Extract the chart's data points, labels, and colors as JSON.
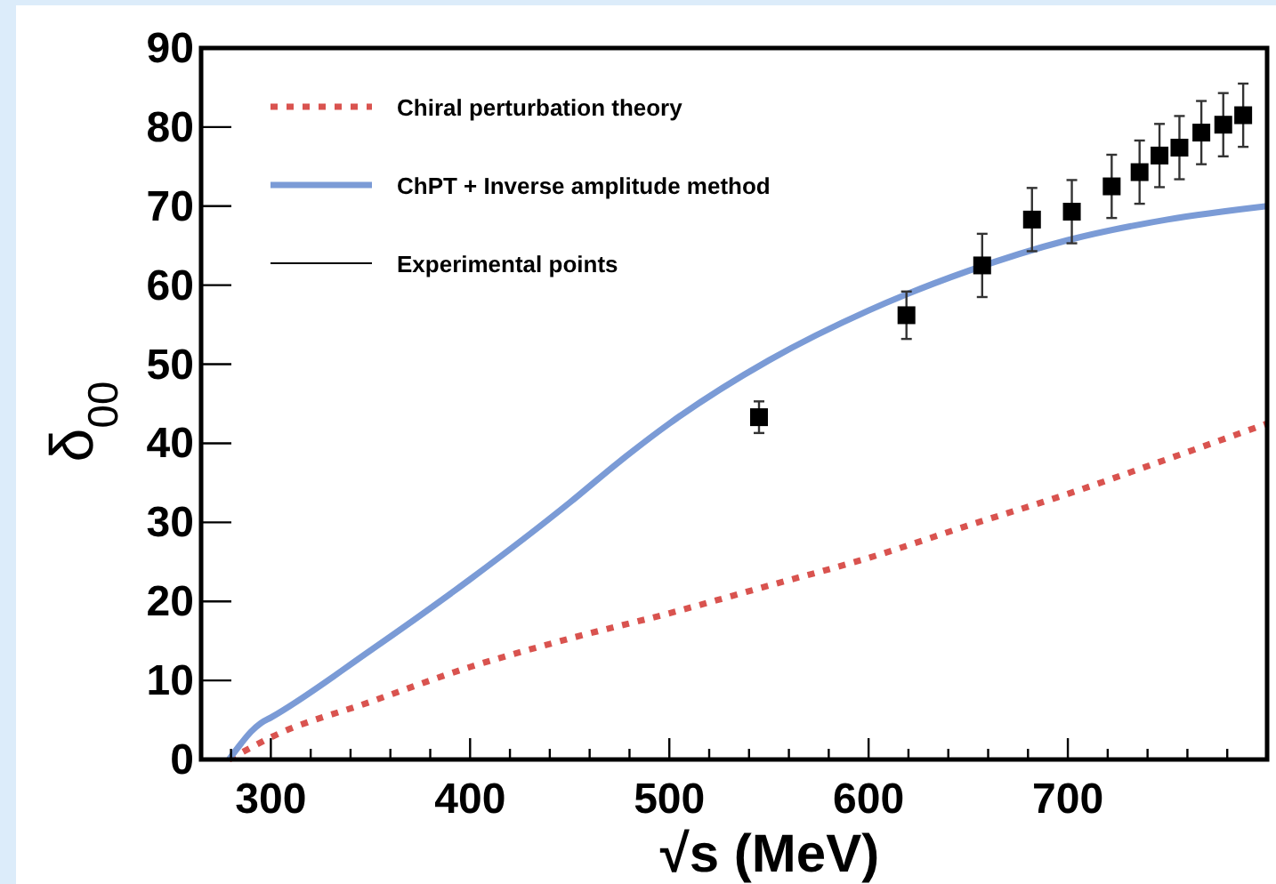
{
  "chart_data": {
    "type": "line",
    "xlabel": "√s (MeV)",
    "ylabel": "δ$_{00}$",
    "xlim": [
      265,
      800
    ],
    "ylim": [
      0,
      90
    ],
    "xticks": [
      300,
      400,
      500,
      600,
      700,
      {
        "value": 280,
        "label": null
      },
      {
        "value": 320,
        "label": null
      },
      {
        "value": 340,
        "label": null
      },
      {
        "value": 360,
        "label": null
      },
      {
        "value": 380,
        "label": null
      },
      {
        "value": 420,
        "label": null
      },
      {
        "value": 440,
        "label": null
      },
      {
        "value": 460,
        "label": null
      },
      {
        "value": 480,
        "label": null
      },
      {
        "value": 520,
        "label": null
      },
      {
        "value": 540,
        "label": null
      },
      {
        "value": 560,
        "label": null
      },
      {
        "value": 580,
        "label": null
      },
      {
        "value": 620,
        "label": null
      },
      {
        "value": 640,
        "label": null
      },
      {
        "value": 660,
        "label": null
      },
      {
        "value": 680,
        "label": null
      },
      {
        "value": 720,
        "label": null
      },
      {
        "value": 740,
        "label": null
      },
      {
        "value": 760,
        "label": null
      },
      {
        "value": 780,
        "label": null
      }
    ],
    "yticks": [
      0,
      10,
      20,
      30,
      40,
      50,
      60,
      70,
      80,
      90
    ],
    "grid": false,
    "legend": "top left",
    "series": [
      {
        "name": "Chiral perturbation theory",
        "line_style": "dotted",
        "color": "#d9534f",
        "x": [
          279,
          290,
          300,
          350,
          400,
          450,
          500,
          550,
          600,
          650,
          700,
          750,
          800
        ],
        "values": [
          0,
          1.5,
          2.8,
          7.3,
          11.7,
          15.3,
          18.5,
          22,
          25.5,
          29.6,
          33.6,
          38,
          42.5
        ]
      },
      {
        "name": "ChPT + Inverse amplitude method",
        "line_style": "solid",
        "color": "#7b9bd6",
        "x": [
          279,
          285,
          290,
          295,
          300,
          350,
          400,
          450,
          475,
          500,
          550,
          600,
          650,
          700,
          750,
          800
        ],
        "values": [
          0,
          2,
          3.5,
          4.6,
          5.3,
          13.8,
          22.8,
          32.5,
          37.7,
          42.5,
          50.5,
          56.8,
          61.8,
          65.7,
          68.3,
          70
        ]
      },
      {
        "name": "Experimental points",
        "type": "scatter",
        "marker": "square",
        "color": "#000000",
        "x": [
          545,
          619,
          657,
          682,
          702,
          722,
          736,
          746,
          756,
          767,
          778,
          788
        ],
        "values": [
          43.3,
          56.2,
          62.5,
          68.3,
          69.3,
          72.5,
          74.3,
          76.4,
          77.4,
          79.3,
          80.3,
          81.5
        ],
        "errors": [
          2,
          3,
          4,
          4,
          4,
          4,
          4,
          4,
          4,
          4,
          4,
          4
        ]
      }
    ]
  }
}
